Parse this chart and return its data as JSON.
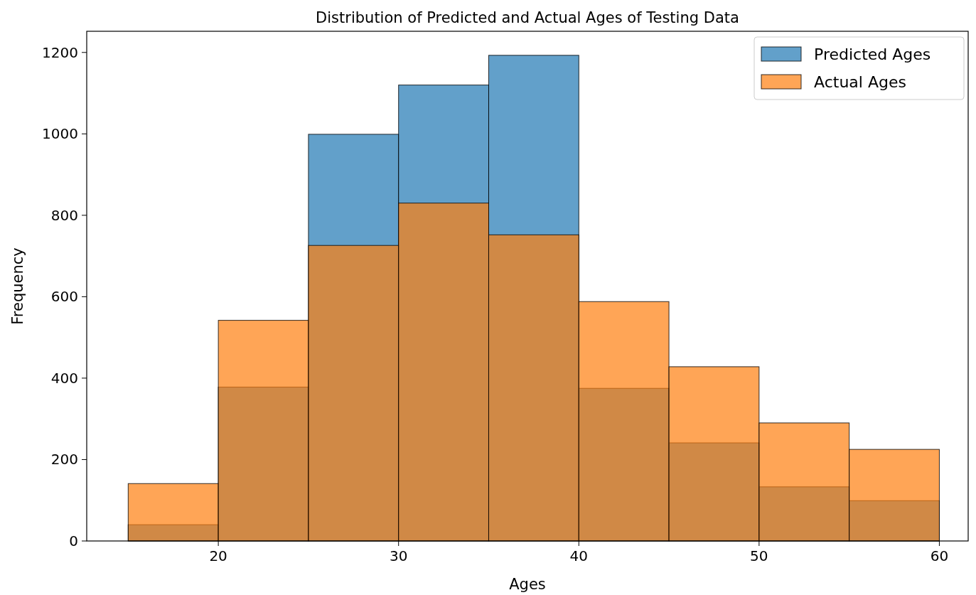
{
  "chart_data": {
    "type": "histogram",
    "title": "Distribution of Predicted and Actual Ages of Testing Data",
    "xlabel": "Ages",
    "ylabel": "Frequency",
    "bins": [
      15,
      20,
      25,
      30,
      35,
      40,
      45,
      50,
      55,
      60
    ],
    "series": [
      {
        "name": "Predicted Ages",
        "color": "#1f77b4",
        "values": [
          40,
          378,
          999,
          1120,
          1193,
          375,
          241,
          133,
          99
        ]
      },
      {
        "name": "Actual Ages",
        "color": "#ff7f0e",
        "values": [
          141,
          542,
          726,
          830,
          752,
          588,
          428,
          290,
          225
        ]
      }
    ],
    "xlim": [
      12.7,
      61.6
    ],
    "xticks": [
      20,
      30,
      40,
      50,
      60
    ],
    "ylim": [
      0,
      1252
    ],
    "yticks": [
      0,
      200,
      400,
      600,
      800,
      1000,
      1200
    ],
    "grid": false,
    "legend": "top right"
  }
}
